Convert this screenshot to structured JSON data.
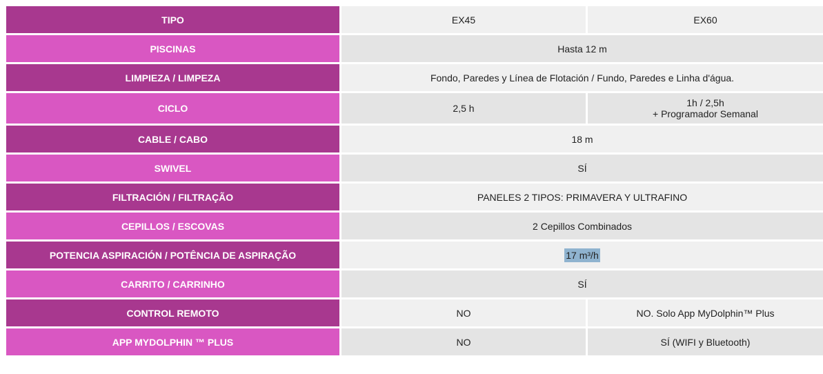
{
  "rows": [
    {
      "label": "TIPO",
      "a": "EX45",
      "b": "EX60"
    },
    {
      "label": "PISCINAS",
      "value": "Hasta 12 m"
    },
    {
      "label": "LIMPIEZA / LIMPEZA",
      "value": "Fondo, Paredes y Línea de Flotación / Fundo, Paredes e Linha d'água."
    },
    {
      "label": "CICLO",
      "a": "2,5 h",
      "b_line1": "1h / 2,5h",
      "b_line2": "+ Programador Semanal"
    },
    {
      "label": "CABLE / CABO",
      "value": "18 m"
    },
    {
      "label": "SWIVEL",
      "value": "SÍ"
    },
    {
      "label": "FILTRACIÓN / FILTRAÇÃO",
      "value": "PANELES 2 TIPOS: PRIMAVERA Y ULTRAFINO"
    },
    {
      "label": "CEPILLOS / ESCOVAS",
      "value": "2 Cepillos Combinados"
    },
    {
      "label": "POTENCIA ASPIRACIÓN / POTÊNCIA DE ASPIRAÇÃO",
      "value": "17 m³/h"
    },
    {
      "label": "CARRITO / CARRINHO",
      "value": "SÍ"
    },
    {
      "label": "CONTROL REMOTO",
      "a": "NO",
      "b": "NO. Solo App MyDolphin™ Plus"
    },
    {
      "label": "APP MYDOLPHIN ™ PLUS",
      "a": "NO",
      "b": "SÍ (WIFI y Bluetooth)"
    }
  ],
  "colors": {
    "label_dark": "#a8388f",
    "label_light": "#d957c2",
    "highlight": "#8fb3cf"
  }
}
